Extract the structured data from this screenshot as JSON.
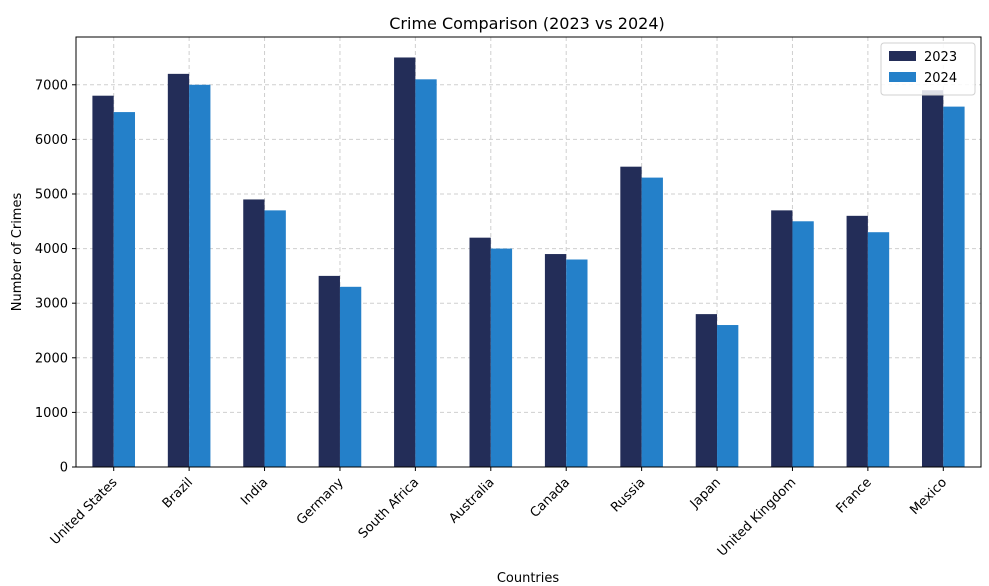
{
  "chart_data": {
    "type": "bar",
    "title": "Crime Comparison (2023 vs 2024)",
    "xlabel": "Countries",
    "ylabel": "Number of Crimes",
    "categories": [
      "United States",
      "Brazil",
      "India",
      "Germany",
      "South Africa",
      "Australia",
      "Canada",
      "Russia",
      "Japan",
      "United Kingdom",
      "France",
      "Mexico"
    ],
    "series": [
      {
        "name": "2023",
        "color": "#232d58",
        "values": [
          6800,
          7200,
          4900,
          3500,
          7500,
          4200,
          3900,
          5500,
          2800,
          4700,
          4600,
          6900
        ]
      },
      {
        "name": "2024",
        "color": "#2480c9",
        "values": [
          6500,
          7000,
          4700,
          3300,
          7100,
          4000,
          3800,
          5300,
          2600,
          4500,
          4300,
          6600
        ]
      }
    ],
    "ylim": [
      0,
      7875
    ],
    "yticks": [
      0,
      1000,
      2000,
      3000,
      4000,
      5000,
      6000,
      7000
    ],
    "grid": true,
    "legend": "upper-right"
  }
}
